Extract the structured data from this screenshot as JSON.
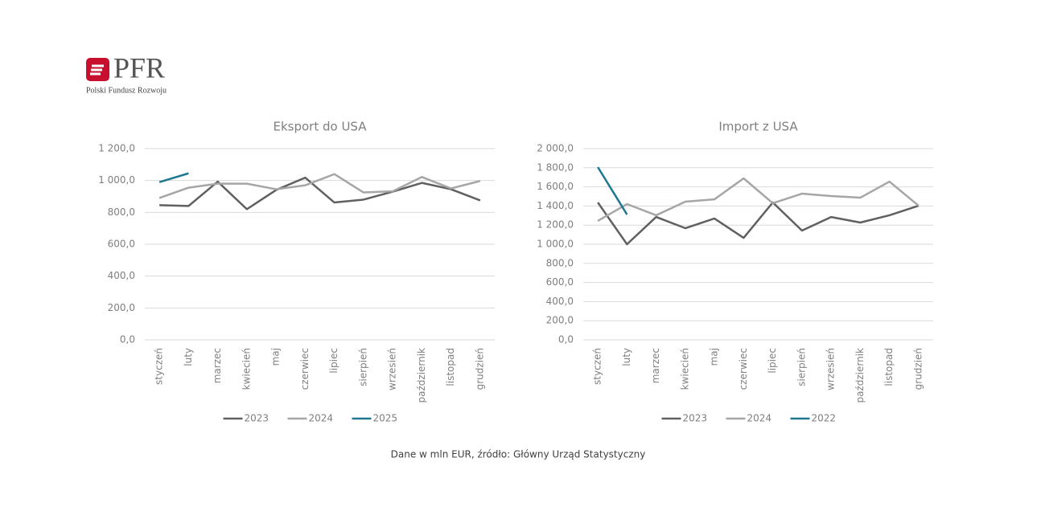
{
  "logo": {
    "name": "PFR",
    "subtitle": "Polski Fundusz Rozwoju"
  },
  "note": "Dane w mln EUR, źródło: Główny Urząd Statystyczny",
  "chart_data": [
    {
      "type": "line",
      "title": "Eksport do USA",
      "categories": [
        "styczeń",
        "luty",
        "marzec",
        "kwiecień",
        "maj",
        "czerwiec",
        "lipiec",
        "sierpień",
        "wrzesień",
        "październik",
        "listopad",
        "grudzień"
      ],
      "series": [
        {
          "name": "2023",
          "color": "#606060",
          "values": [
            845,
            840,
            993,
            820,
            940,
            1018,
            862,
            880,
            930,
            985,
            945,
            875
          ]
        },
        {
          "name": "2024",
          "color": "#a6a6a6",
          "values": [
            890,
            955,
            980,
            980,
            945,
            970,
            1040,
            925,
            932,
            1022,
            950,
            997
          ]
        },
        {
          "name": "2025",
          "color": "#1f7891",
          "values": [
            990,
            1045,
            null,
            null,
            null,
            null,
            null,
            null,
            null,
            null,
            null,
            null
          ]
        }
      ],
      "ylim": [
        0,
        1200
      ],
      "yticks": [
        {
          "value": 0,
          "label": "0,0"
        },
        {
          "value": 200,
          "label": "200,0"
        },
        {
          "value": 400,
          "label": "400,0"
        },
        {
          "value": 600,
          "label": "600,0"
        },
        {
          "value": 800,
          "label": "800,0"
        },
        {
          "value": 1000,
          "label": "1 000,0"
        },
        {
          "value": 1200,
          "label": "1 200,0"
        }
      ],
      "grid": true,
      "legend": "bottom"
    },
    {
      "type": "line",
      "title": "Import z USA",
      "categories": [
        "styczeń",
        "luty",
        "marzec",
        "kwiecień",
        "maj",
        "czerwiec",
        "lipiec",
        "sierpień",
        "wrzesień",
        "październik",
        "listopad",
        "grudzień"
      ],
      "series": [
        {
          "name": "2023",
          "color": "#606060",
          "values": [
            1437,
            1000,
            1285,
            1168,
            1269,
            1067,
            1437,
            1143,
            1285,
            1227,
            1303,
            1403
          ]
        },
        {
          "name": "2024",
          "color": "#a6a6a6",
          "values": [
            1244,
            1420,
            1303,
            1445,
            1470,
            1689,
            1429,
            1529,
            1504,
            1487,
            1655,
            1403
          ]
        },
        {
          "name": "2022",
          "color": "#1f7891",
          "values": [
            1807,
            1311,
            null,
            null,
            null,
            null,
            null,
            null,
            null,
            null,
            null,
            null
          ]
        }
      ],
      "ylim": [
        0,
        2000
      ],
      "yticks": [
        {
          "value": 0,
          "label": "0,0"
        },
        {
          "value": 200,
          "label": "200,0"
        },
        {
          "value": 400,
          "label": "400,0"
        },
        {
          "value": 600,
          "label": "600,0"
        },
        {
          "value": 800,
          "label": "800,0"
        },
        {
          "value": 1000,
          "label": "1 000,0"
        },
        {
          "value": 1200,
          "label": "1 200,0"
        },
        {
          "value": 1400,
          "label": "1 400,0"
        },
        {
          "value": 1600,
          "label": "1 600,0"
        },
        {
          "value": 1800,
          "label": "1 800,0"
        },
        {
          "value": 2000,
          "label": "2 000,0"
        }
      ],
      "grid": true,
      "legend": "bottom"
    }
  ]
}
